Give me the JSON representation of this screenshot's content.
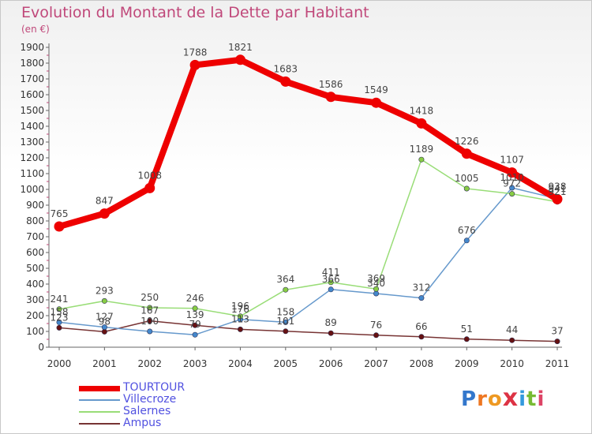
{
  "title": "Evolution du Montant de la Dette par Habitant",
  "subtitle": "(en €)",
  "brand": "Proxiti",
  "chart_data": {
    "type": "line",
    "x": [
      "2000",
      "2001",
      "2002",
      "2003",
      "2004",
      "2005",
      "2006",
      "2007",
      "2008",
      "2009",
      "2010",
      "2011"
    ],
    "ylim": [
      0,
      1900
    ],
    "yticks": [
      0,
      100,
      200,
      300,
      400,
      500,
      600,
      700,
      800,
      900,
      1000,
      1100,
      1200,
      1300,
      1400,
      1500,
      1600,
      1700,
      1800,
      1900
    ],
    "grid": false,
    "legend_position": "bottom-left",
    "series": [
      {
        "name": "TOURTOUR",
        "color": "#ee0000",
        "marker": "#ee0000",
        "values": [
          765,
          847,
          1008,
          1788,
          1821,
          1683,
          1586,
          1549,
          1418,
          1226,
          1107,
          938
        ]
      },
      {
        "name": "Villecroze",
        "color": "#6699cc",
        "marker": "#4488cc",
        "values": [
          158,
          127,
          100,
          79,
          176,
          158,
          366,
          340,
          312,
          676,
          1010,
          941
        ]
      },
      {
        "name": "Salernes",
        "color": "#99dd77",
        "marker": "#88cc44",
        "values": [
          241,
          293,
          250,
          246,
          196,
          364,
          411,
          369,
          1189,
          1005,
          972,
          921
        ]
      },
      {
        "name": "Ampus",
        "color": "#773333",
        "marker": "#661111",
        "values": [
          123,
          98,
          167,
          139,
          113,
          101,
          89,
          76,
          66,
          51,
          44,
          37
        ]
      }
    ]
  }
}
